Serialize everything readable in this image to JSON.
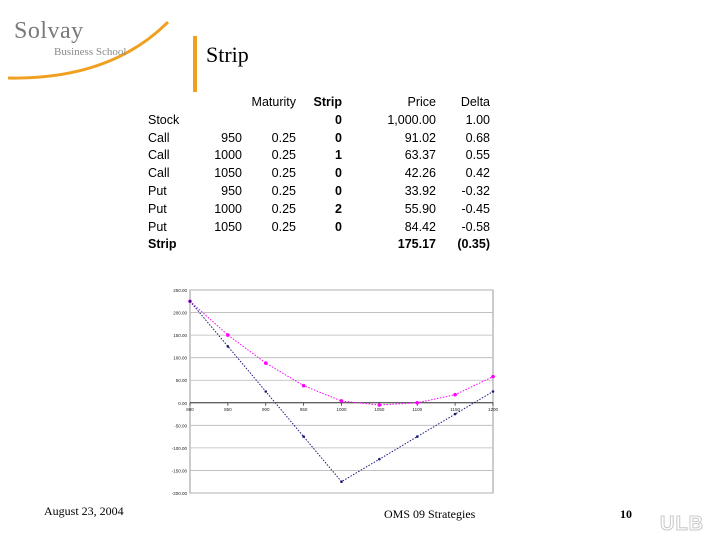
{
  "logo": {
    "name": "Solvay",
    "sub": "Business School"
  },
  "title": "Strip",
  "table": {
    "headers": [
      "",
      "",
      "Maturity",
      "Strip",
      "Price",
      "Delta"
    ],
    "rows": [
      [
        "Stock",
        "",
        "",
        "0",
        "1,000.00",
        "1.00"
      ],
      [
        "Call",
        "950",
        "0.25",
        "0",
        "91.02",
        "0.68"
      ],
      [
        "Call",
        "1000",
        "0.25",
        "1",
        "63.37",
        "0.55"
      ],
      [
        "Call",
        "1050",
        "0.25",
        "0",
        "42.26",
        "0.42"
      ],
      [
        "Put",
        "950",
        "0.25",
        "0",
        "33.92",
        "-0.32"
      ],
      [
        "Put",
        "1000",
        "0.25",
        "2",
        "55.90",
        "-0.45"
      ],
      [
        "Put",
        "1050",
        "0.25",
        "0",
        "84.42",
        "-0.58"
      ]
    ],
    "total": [
      "Strip",
      "",
      "",
      "",
      "175.17",
      "(0.35)"
    ]
  },
  "chart_data": {
    "type": "line",
    "xlim": [
      800,
      1200
    ],
    "ylim": [
      -200,
      250
    ],
    "x_ticks": [
      "800",
      "850",
      "900",
      "950",
      "1000",
      "1050",
      "1100",
      "1150",
      "1200"
    ],
    "y_ticks": [
      "250.00",
      "200.00",
      "150.00",
      "100.00",
      "50.00",
      "0.00",
      "-50.00",
      "-100.00",
      "-150.00",
      "-200.00"
    ],
    "grid": true,
    "series": [
      {
        "color": "#ff00ff",
        "x": [
          800,
          850,
          900,
          950,
          1000,
          1050,
          1100,
          1150,
          1200
        ],
        "y": [
          225,
          150,
          88,
          38,
          4,
          -5,
          0,
          18,
          58
        ]
      },
      {
        "color": "#1a1a7a",
        "x": [
          800,
          850,
          900,
          950,
          1000,
          1050,
          1100,
          1150,
          1200
        ],
        "y": [
          225,
          125,
          25,
          -75,
          -175,
          -125,
          -75,
          -25,
          25
        ]
      }
    ]
  },
  "footer": {
    "date": "August 23, 2004",
    "center": "OMS 09 Strategies",
    "page": "10",
    "brand": "ULB"
  }
}
